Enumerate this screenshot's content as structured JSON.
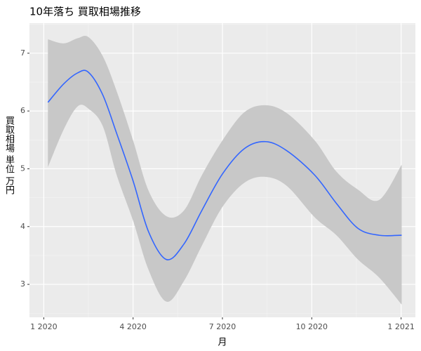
{
  "chart_data": {
    "type": "smooth",
    "title": "10年落ち 買取相場推移",
    "x_label": "月",
    "y_label": "買取相場 単位 万円",
    "x": [
      1.14,
      1.67,
      2.14,
      2.5,
      2.98,
      3.45,
      4,
      4.52,
      5.12,
      5.71,
      6.31,
      7,
      7.74,
      8.45,
      9.17,
      10.1,
      10.83,
      11.55,
      12.26,
      13.02
    ],
    "series": [
      {
        "color": "#3366ff",
        "ribbon_color": "#c8c8c8",
        "values": [
          6.15,
          6.47,
          6.66,
          6.67,
          6.28,
          5.61,
          4.79,
          3.91,
          3.43,
          3.7,
          4.28,
          4.91,
          5.35,
          5.47,
          5.31,
          4.89,
          4.4,
          3.97,
          3.85,
          3.85
        ],
        "lower": [
          5.03,
          5.68,
          6.08,
          6.04,
          5.74,
          4.89,
          4.1,
          3.25,
          2.7,
          3.06,
          3.67,
          4.34,
          4.76,
          4.86,
          4.7,
          4.16,
          3.85,
          3.43,
          3.12,
          2.65
        ],
        "upper": [
          7.24,
          7.17,
          7.26,
          7.28,
          6.95,
          6.34,
          5.49,
          4.62,
          4.18,
          4.28,
          4.89,
          5.49,
          5.98,
          6.1,
          5.96,
          5.49,
          4.95,
          4.64,
          4.46,
          5.07
        ]
      }
    ],
    "xlim": [
      0.52,
      13.48
    ],
    "xticks": [
      {
        "value": 1,
        "label": "1 2020"
      },
      {
        "value": 4,
        "label": "4 2020"
      },
      {
        "value": 7,
        "label": "7 2020"
      },
      {
        "value": 10,
        "label": "10 2020"
      },
      {
        "value": 13,
        "label": "1 2021"
      }
    ],
    "ylim": [
      2.43,
      7.52
    ],
    "yticks": [
      3,
      4,
      5,
      6,
      7
    ],
    "grid": true
  }
}
